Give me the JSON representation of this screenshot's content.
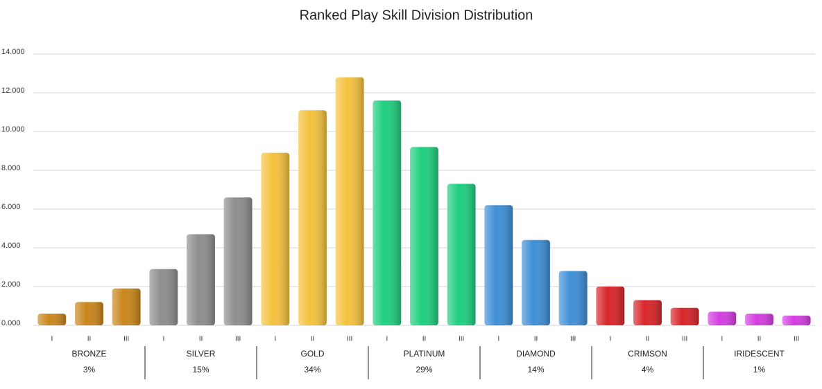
{
  "chart_data": {
    "type": "bar",
    "title": "Ranked Play Skill Division Distribution",
    "categories": [
      "I",
      "II",
      "III",
      "I",
      "II",
      "III",
      "I",
      "II",
      "III",
      "I",
      "II",
      "III",
      "I",
      "II",
      "III",
      "I",
      "II",
      "III",
      "I",
      "II",
      "III"
    ],
    "values": [
      600,
      1200,
      1900,
      2900,
      4700,
      6600,
      8900,
      11100,
      12800,
      11600,
      9200,
      7300,
      6200,
      4400,
      2800,
      2000,
      1300,
      900,
      700,
      600,
      500
    ],
    "groups": {
      "names": [
        "BRONZE",
        "SILVER",
        "GOLD",
        "PLATINUM",
        "DIAMOND",
        "CRIMSON",
        "IRIDESCENT"
      ],
      "values": [
        3,
        15,
        34,
        29,
        14,
        4,
        1
      ],
      "value_labels": [
        "3%",
        "15%",
        "34%",
        "29%",
        "14%",
        "4%",
        "1%"
      ],
      "colors": [
        "#c9861c",
        "#8e8e8e",
        "#f5c23e",
        "#1fcf7f",
        "#3f8fd6",
        "#d8262a",
        "#d43ee0"
      ]
    },
    "ylim": [
      0,
      14000
    ],
    "yticks": [
      {
        "value": 0,
        "label": "0.000"
      },
      {
        "value": 2000,
        "label": "2.000"
      },
      {
        "value": 4000,
        "label": "4.000"
      },
      {
        "value": 6000,
        "label": "6.000"
      },
      {
        "value": 8000,
        "label": "8.000"
      },
      {
        "value": 10000,
        "label": "10.000"
      },
      {
        "value": 12000,
        "label": "12.000"
      },
      {
        "value": 14000,
        "label": "14.000"
      }
    ],
    "grid": true
  }
}
